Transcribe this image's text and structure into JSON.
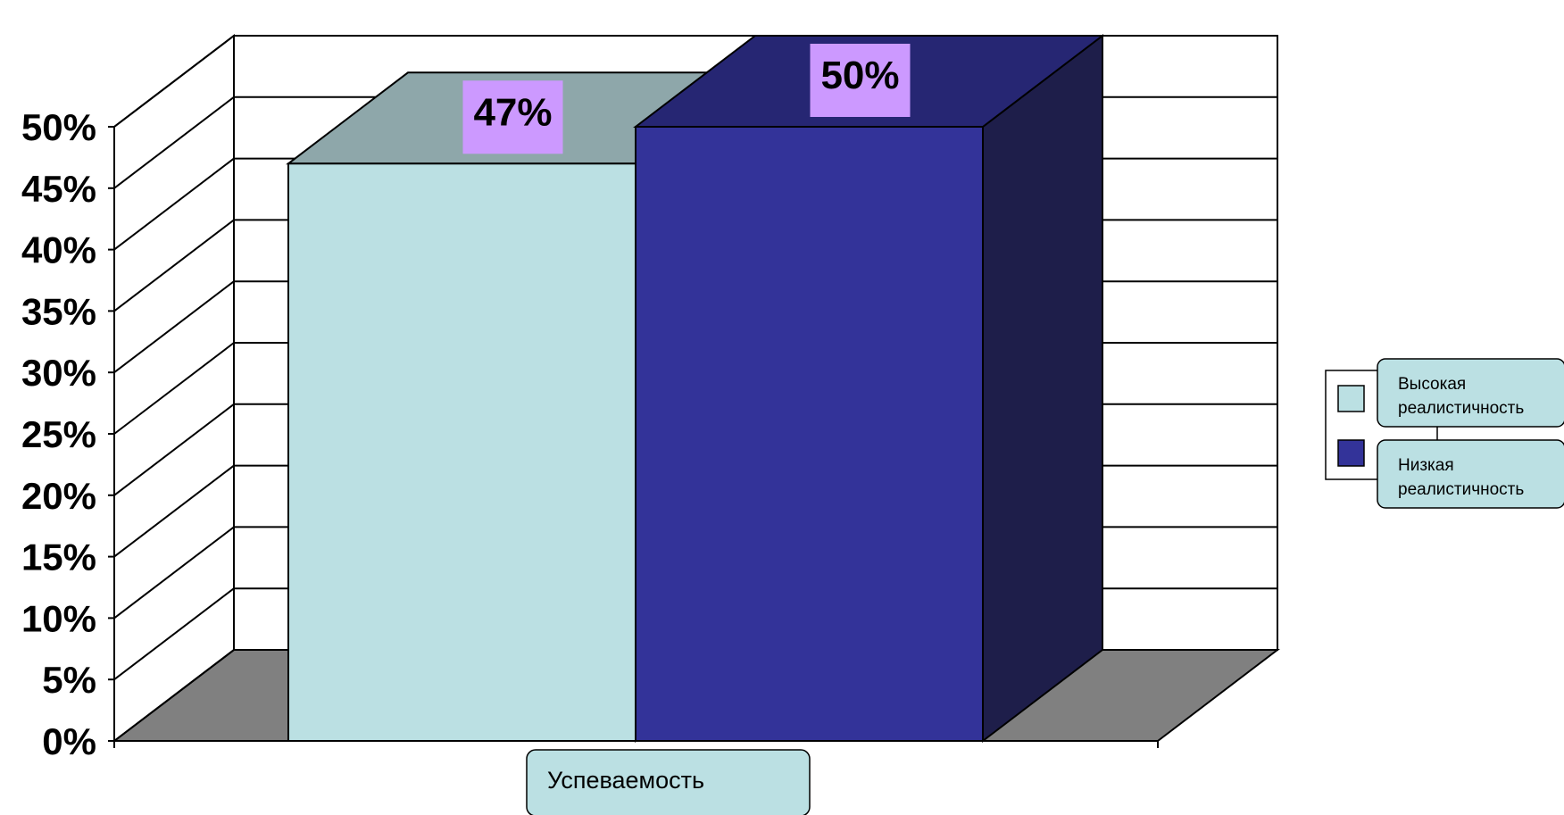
{
  "chart_data": {
    "type": "bar",
    "categories": [
      "Успеваемость"
    ],
    "series": [
      {
        "name": "Высокая реалистичность",
        "values": [
          47
        ],
        "color": "#BBE0E3"
      },
      {
        "name": "Низкая реалистичность",
        "values": [
          50
        ],
        "color": "#333399"
      }
    ],
    "value_labels": [
      "47%",
      "50%"
    ],
    "y_ticks": [
      "0%",
      "5%",
      "10%",
      "15%",
      "20%",
      "25%",
      "30%",
      "35%",
      "40%",
      "45%",
      "50%"
    ],
    "ylim": [
      0,
      50
    ],
    "ystep": 5,
    "gridlines": true,
    "legend_position": "right",
    "label_box_color": "#CC99FF",
    "floor_color": "#808080"
  }
}
